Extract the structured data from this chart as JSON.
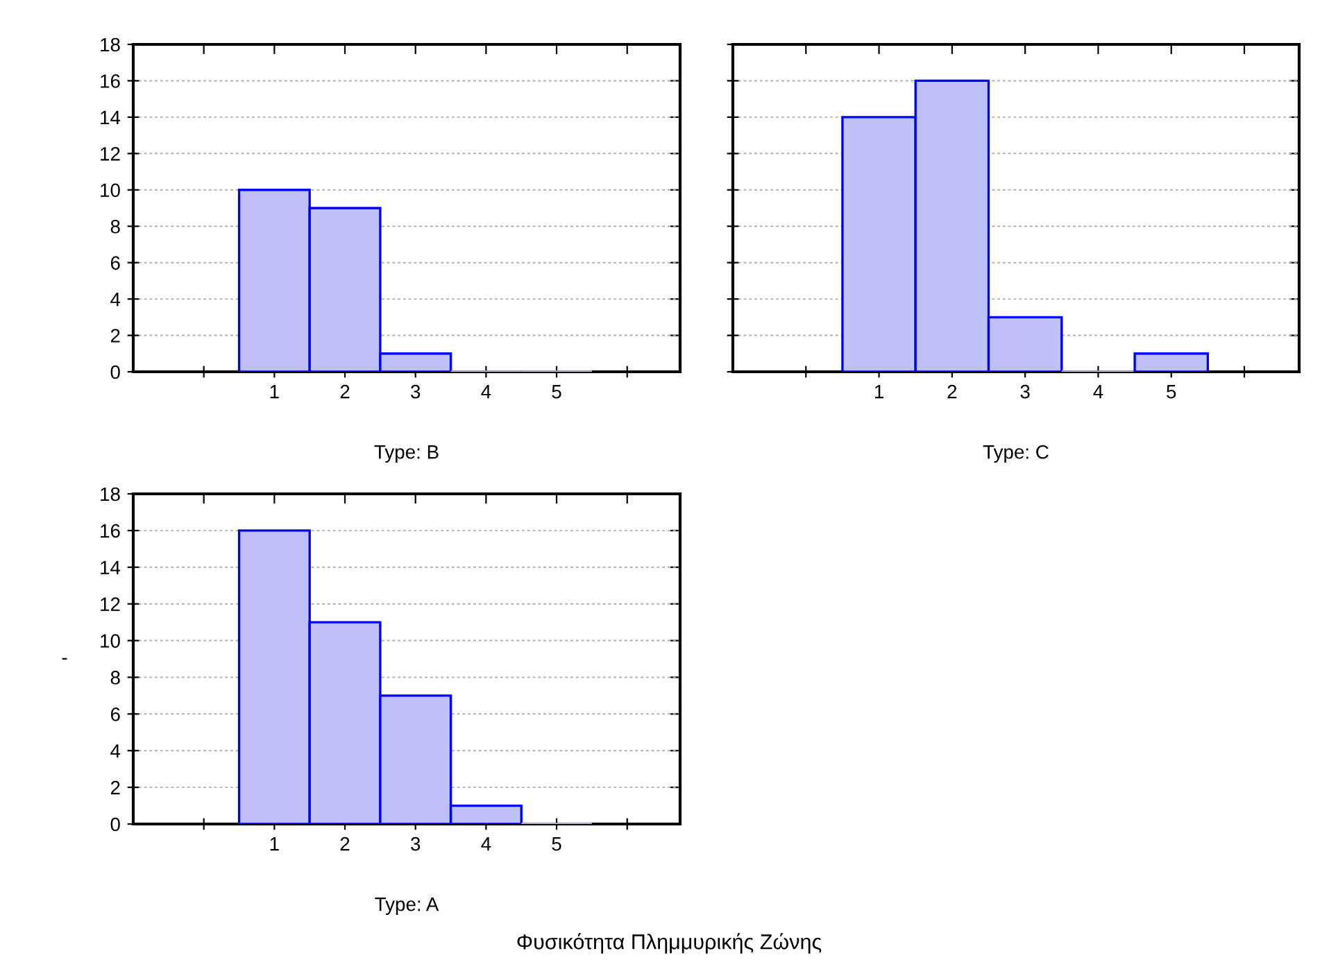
{
  "chart_data": [
    {
      "type": "bar",
      "xlabel": "Type: B",
      "categories": [
        null,
        "1",
        "2",
        "3",
        "4",
        "5",
        null
      ],
      "values": [
        null,
        10,
        9,
        1,
        0,
        0,
        null
      ],
      "color": "#c0c0f8",
      "ylim": [
        0,
        18
      ],
      "yticks": [
        0,
        2,
        4,
        6,
        8,
        10,
        12,
        14,
        16,
        18
      ],
      "grid": "y"
    },
    {
      "type": "bar",
      "xlabel": "Type: C",
      "categories": [
        null,
        "1",
        "2",
        "3",
        "4",
        "5",
        null
      ],
      "values": [
        null,
        14,
        16,
        3,
        0,
        1,
        null
      ],
      "color": "#c0c0f8",
      "ylim": [
        0,
        18
      ],
      "yticks": [
        0,
        2,
        4,
        6,
        8,
        10,
        12,
        14,
        16,
        18
      ],
      "grid": "y",
      "tick_labels": "x"
    },
    {
      "type": "bar",
      "xlabel": "Type: A",
      "ylabel": "-",
      "categories": [
        null,
        "1",
        "2",
        "3",
        "4",
        "5",
        null
      ],
      "values": [
        null,
        16,
        11,
        7,
        1,
        0,
        null
      ],
      "color": "#c0c0f8",
      "ylim": [
        0,
        18
      ],
      "yticks": [
        0,
        2,
        4,
        6,
        8,
        10,
        12,
        14,
        16,
        18
      ],
      "grid": "y",
      "annotations": [
        "Φυσικότητα Πλημμυρικής Ζώνης"
      ]
    }
  ]
}
